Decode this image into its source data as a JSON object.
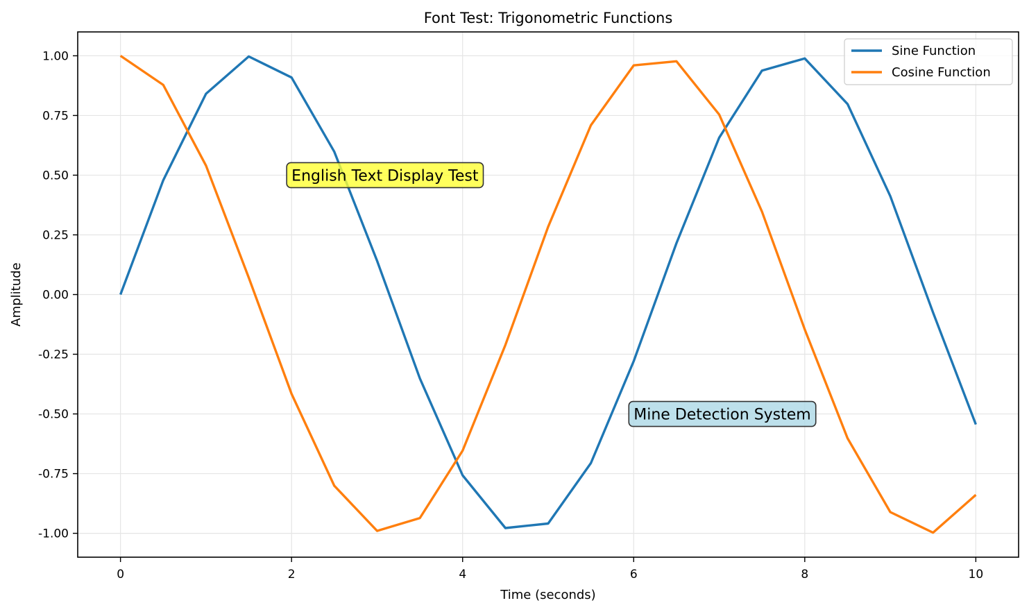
{
  "chart_data": {
    "type": "line",
    "title": "Font Test: Trigonometric Functions",
    "xlabel": "Time (seconds)",
    "ylabel": "Amplitude",
    "xlim": [
      -0.5,
      10.5
    ],
    "ylim": [
      -1.1,
      1.1
    ],
    "x_ticks": [
      0,
      2,
      4,
      6,
      8,
      10
    ],
    "x_tick_labels": [
      "0",
      "2",
      "4",
      "6",
      "8",
      "10"
    ],
    "y_ticks": [
      1.0,
      0.75,
      0.5,
      0.25,
      0.0,
      -0.25,
      -0.5,
      -0.75,
      -1.0
    ],
    "y_tick_labels": [
      "1.00",
      "0.75",
      "0.50",
      "0.25",
      "0.00",
      "-0.25",
      "-0.50",
      "-0.75",
      "-1.00"
    ],
    "grid": true,
    "legend_position": "top-right",
    "series": [
      {
        "name": "Sine Function",
        "color": "#1f77b4",
        "x": [
          0,
          0.5,
          1.0,
          1.5,
          2.0,
          2.5,
          3.0,
          3.5,
          4.0,
          4.5,
          5.0,
          5.5,
          6.0,
          6.5,
          7.0,
          7.5,
          8.0,
          8.5,
          9.0,
          9.5,
          10.0
        ],
        "values": [
          0.0,
          0.479,
          0.841,
          0.997,
          0.909,
          0.598,
          0.141,
          -0.351,
          -0.757,
          -0.978,
          -0.959,
          -0.706,
          -0.279,
          0.215,
          0.657,
          0.938,
          0.989,
          0.798,
          0.412,
          -0.075,
          -0.544
        ]
      },
      {
        "name": "Cosine Function",
        "color": "#ff7f0e",
        "x": [
          0,
          0.5,
          1.0,
          1.5,
          2.0,
          2.5,
          3.0,
          3.5,
          4.0,
          4.5,
          5.0,
          5.5,
          6.0,
          6.5,
          7.0,
          7.5,
          8.0,
          8.5,
          9.0,
          9.5,
          10.0
        ],
        "values": [
          1.0,
          0.878,
          0.54,
          0.071,
          -0.416,
          -0.801,
          -0.99,
          -0.936,
          -0.654,
          -0.211,
          0.284,
          0.709,
          0.96,
          0.977,
          0.754,
          0.347,
          -0.146,
          -0.602,
          -0.911,
          -0.997,
          -0.839
        ]
      }
    ],
    "annotations": [
      {
        "text": "English Text Display Test",
        "x": 2.0,
        "y": 0.5,
        "bg": "#ffff33"
      },
      {
        "text": "Mine Detection System",
        "x": 6.0,
        "y": -0.5,
        "bg": "#add8e6"
      }
    ]
  }
}
